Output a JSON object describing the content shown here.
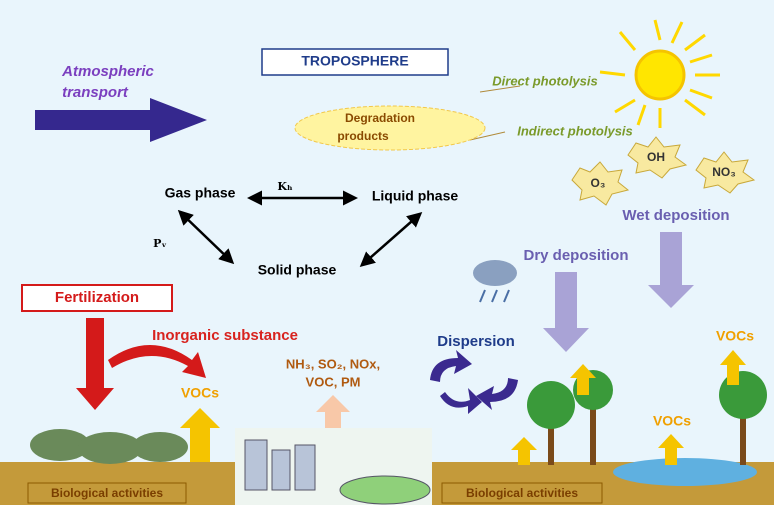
{
  "atmosphere": {
    "transport": [
      "Atmospheric",
      "transport"
    ],
    "title": "TROPOSPHERE",
    "direct_photolysis": "Direct photolysis",
    "indirect_photolysis": "Indirect photolysis",
    "degradation": [
      "Degradation",
      "products"
    ],
    "radicals": [
      "O₃",
      "OH",
      "NO₃"
    ]
  },
  "phases": {
    "gas": "Gas phase",
    "liquid": "Liquid phase",
    "solid": "Solid phase",
    "henry": "Kₕ",
    "vapor": "Pᵥ"
  },
  "processes": {
    "wet": "Wet deposition",
    "dry": "Dry deposition",
    "fertilization": "Fertilization",
    "inorganic": "Inorganic substance",
    "emissions": [
      "NH₃, SO₂, NOx,",
      "VOC, PM"
    ],
    "dispersion": "Dispersion"
  },
  "vocs": [
    "VOCs",
    "VOCs",
    "VOCs"
  ],
  "ground": [
    "Biological activities",
    "Biological activities"
  ]
}
